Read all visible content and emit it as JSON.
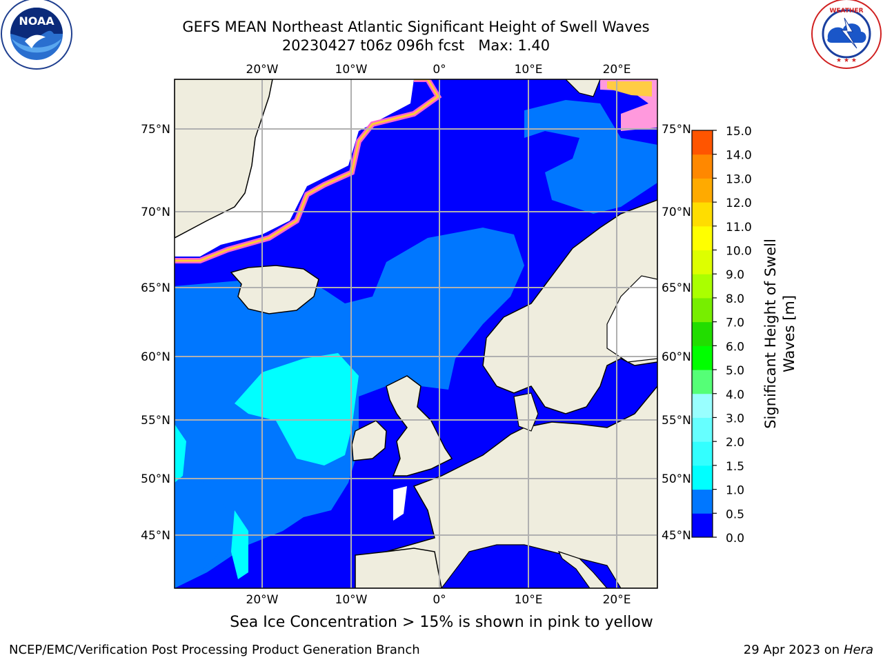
{
  "header": {
    "title_line1": "GEFS MEAN Northeast Atlantic Significant Height of Swell Waves",
    "title_line2": "20230427 t06z 096h fcst   Max: 1.40"
  },
  "logos": {
    "left": {
      "name": "noaa-logo",
      "text": "NOAA",
      "ring_text": "NATIONAL OCEANIC AND ATMOSPHERIC ADMINISTRATION · U.S. DEPARTMENT OF COMMERCE"
    },
    "right": {
      "name": "nws-logo",
      "ring_text": "NATIONAL WEATHER SERVICE"
    }
  },
  "map": {
    "lon_ticks_top": [
      "20°W",
      "10°W",
      "0°",
      "10°E",
      "20°E"
    ],
    "lon_ticks_bottom": [
      "20°W",
      "10°W",
      "0°",
      "10°E",
      "20°E"
    ],
    "lat_ticks_left": [
      "75°N",
      "70°N",
      "65°N",
      "60°N",
      "55°N",
      "50°N",
      "45°N"
    ],
    "lat_ticks_right": [
      "75°N",
      "70°N",
      "65°N",
      "60°N",
      "55°N",
      "50°N",
      "45°N"
    ],
    "colors": {
      "land": "#efedde",
      "ice_free_white": "#ffffff",
      "grid": "#b0b0b0",
      "coast": "#000000"
    }
  },
  "colorbar": {
    "label": "Significant Height of Swell Waves [m]",
    "label_line1": "Significant Height of Swell",
    "label_line2": "Waves [m]",
    "ticks": [
      "15.0",
      "14.0",
      "13.0",
      "12.0",
      "11.0",
      "10.0",
      "9.0",
      "8.0",
      "7.0",
      "6.0",
      "5.0",
      "4.0",
      "3.0",
      "2.0",
      "1.5",
      "1.0",
      "0.5",
      "0.0"
    ],
    "colors_bottom_to_top": [
      "#0000ff",
      "#0077ff",
      "#00ffff",
      "#33ffff",
      "#66ffff",
      "#99ffff",
      "#55ff77",
      "#00ff00",
      "#22dd00",
      "#77ee00",
      "#aaff00",
      "#ddff00",
      "#ffff00",
      "#ffdd00",
      "#ffaa00",
      "#ff8800",
      "#ff5500",
      "#ff3300",
      "#ff0000"
    ]
  },
  "subtitle": "Sea Ice Concentration > 15% is shown in pink to yellow",
  "footer": {
    "left": "NCEP/EMC/Verification Post Processing Product Generation Branch",
    "right_prefix": "29 Apr 2023 on ",
    "right_italic": "Hera"
  }
}
